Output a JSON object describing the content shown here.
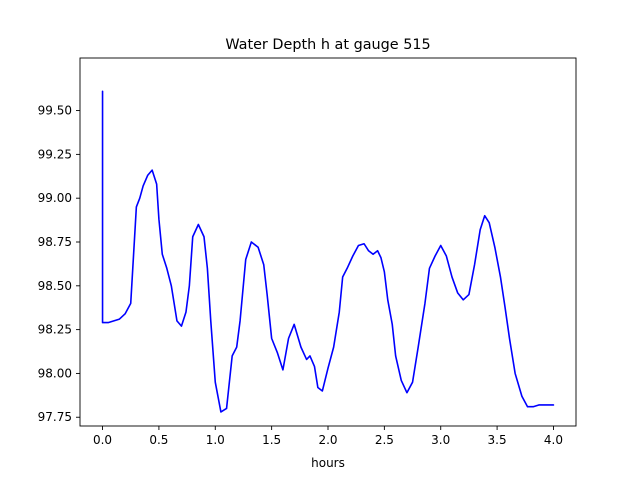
{
  "chart_data": {
    "type": "line",
    "title": "Water Depth h at gauge 515",
    "xlabel": "hours",
    "ylabel": "",
    "xlim": [
      -0.2,
      4.2
    ],
    "ylim": [
      97.7,
      99.8
    ],
    "xticks": [
      0.0,
      0.5,
      1.0,
      1.5,
      2.0,
      2.5,
      3.0,
      3.5,
      4.0
    ],
    "xtick_labels": [
      "0.0",
      "0.5",
      "1.0",
      "1.5",
      "2.0",
      "2.5",
      "3.0",
      "3.5",
      "4.0"
    ],
    "yticks": [
      97.75,
      98.0,
      98.25,
      98.5,
      98.75,
      99.0,
      99.25,
      99.5
    ],
    "ytick_labels": [
      "97.75",
      "98.00",
      "98.25",
      "98.50",
      "98.75",
      "99.00",
      "99.25",
      "99.50"
    ],
    "grid": false,
    "series": [
      {
        "color": "#0000ff",
        "x": [
          0.0,
          0.0,
          0.05,
          0.1,
          0.15,
          0.2,
          0.25,
          0.3,
          0.33,
          0.36,
          0.4,
          0.44,
          0.48,
          0.5,
          0.53,
          0.57,
          0.61,
          0.66,
          0.7,
          0.74,
          0.77,
          0.8,
          0.85,
          0.9,
          0.93,
          0.96,
          1.0,
          1.05,
          1.1,
          1.15,
          1.19,
          1.22,
          1.27,
          1.32,
          1.38,
          1.43,
          1.46,
          1.5,
          1.55,
          1.6,
          1.65,
          1.7,
          1.76,
          1.81,
          1.84,
          1.88,
          1.91,
          1.95,
          2.0,
          2.05,
          2.1,
          2.13,
          2.17,
          2.22,
          2.27,
          2.32,
          2.36,
          2.4,
          2.44,
          2.47,
          2.5,
          2.53,
          2.57,
          2.6,
          2.65,
          2.7,
          2.75,
          2.8,
          2.86,
          2.9,
          2.95,
          3.0,
          3.05,
          3.1,
          3.15,
          3.2,
          3.25,
          3.3,
          3.35,
          3.39,
          3.43,
          3.48,
          3.53,
          3.57,
          3.61,
          3.66,
          3.72,
          3.77,
          3.82,
          3.87,
          3.92,
          3.96,
          4.0
        ],
        "y": [
          99.61,
          98.29,
          98.29,
          98.3,
          98.31,
          98.34,
          98.4,
          98.95,
          99.0,
          99.07,
          99.13,
          99.16,
          99.08,
          98.88,
          98.68,
          98.6,
          98.5,
          98.3,
          98.27,
          98.35,
          98.5,
          98.78,
          98.85,
          98.78,
          98.6,
          98.3,
          97.95,
          97.78,
          97.8,
          98.1,
          98.15,
          98.3,
          98.65,
          98.75,
          98.72,
          98.62,
          98.45,
          98.2,
          98.12,
          98.02,
          98.2,
          98.28,
          98.15,
          98.08,
          98.1,
          98.04,
          97.92,
          97.9,
          98.03,
          98.15,
          98.35,
          98.55,
          98.6,
          98.67,
          98.73,
          98.74,
          98.7,
          98.68,
          98.7,
          98.66,
          98.58,
          98.42,
          98.28,
          98.1,
          97.96,
          97.89,
          97.95,
          98.15,
          98.4,
          98.6,
          98.67,
          98.73,
          98.67,
          98.55,
          98.46,
          98.42,
          98.45,
          98.62,
          98.82,
          98.9,
          98.86,
          98.72,
          98.55,
          98.38,
          98.2,
          98.0,
          97.87,
          97.81,
          97.81,
          97.82,
          97.82,
          97.82,
          97.82
        ]
      }
    ]
  }
}
